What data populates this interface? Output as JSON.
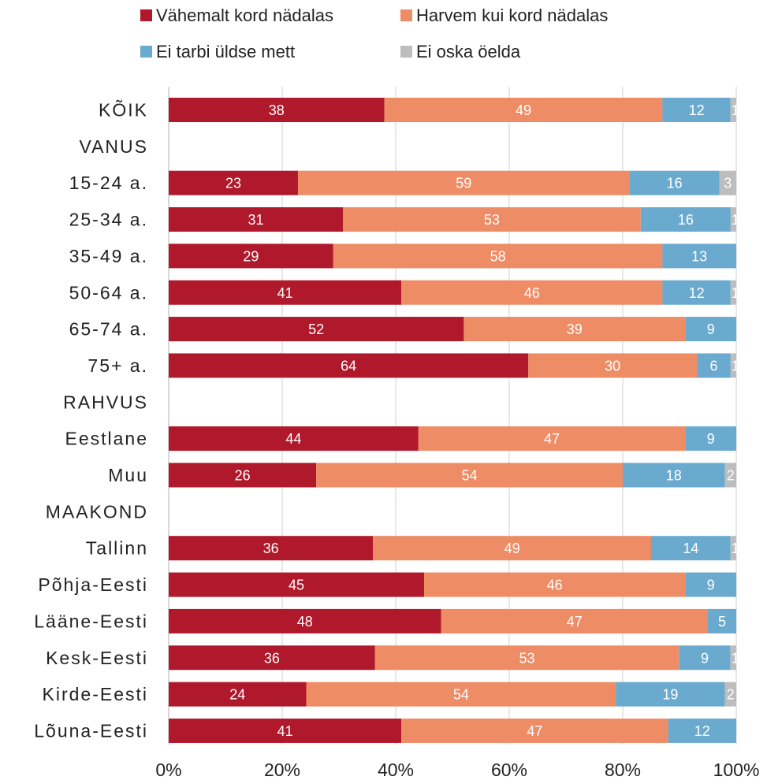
{
  "chart_data": {
    "type": "bar",
    "orientation": "horizontal",
    "stacked": true,
    "percent": true,
    "legend_position": "top",
    "grid": true,
    "xlim": [
      0,
      100
    ],
    "x_ticks": [
      "0%",
      "20%",
      "40%",
      "60%",
      "80%",
      "100%"
    ],
    "colors": [
      "#b0182b",
      "#ee8c66",
      "#6aaacf",
      "#bdbdbd"
    ],
    "legend_labels": [
      "Vähemalt kord nädalas",
      "Harvem kui kord nädalas",
      "Ei tarbi üldse mett",
      "Ei oska öelda"
    ],
    "categories": [
      "KÕIK",
      "VANUS",
      "15-24 a.",
      "25-34 a.",
      "35-49 a.",
      "50-64 a.",
      "65-74 a.",
      "75+ a.",
      "RAHVUS",
      "Eestlane",
      "Muu",
      "MAAKOND",
      "Tallinn",
      "Põhja-Eesti",
      "Lääne-Eesti",
      "Kesk-Eesti",
      "Kirde-Eesti",
      "Lõuna-Eesti"
    ],
    "series": [
      {
        "name": "Vähemalt kord nädalas",
        "values": [
          38,
          null,
          23,
          31,
          29,
          41,
          52,
          64,
          null,
          44,
          26,
          null,
          36,
          45,
          48,
          36,
          24,
          41
        ]
      },
      {
        "name": "Harvem kui kord nädalas",
        "values": [
          49,
          null,
          59,
          53,
          58,
          46,
          39,
          30,
          null,
          47,
          54,
          null,
          49,
          46,
          47,
          53,
          54,
          47
        ]
      },
      {
        "name": "Ei tarbi üldse mett",
        "values": [
          12,
          null,
          16,
          16,
          13,
          12,
          9,
          6,
          null,
          9,
          18,
          null,
          14,
          9,
          5,
          9,
          19,
          12
        ]
      },
      {
        "name": "Ei oska öelda",
        "values": [
          1,
          null,
          3,
          1,
          0,
          1,
          0,
          1,
          null,
          0,
          2,
          null,
          1,
          0,
          0,
          1,
          2,
          0
        ]
      }
    ]
  }
}
